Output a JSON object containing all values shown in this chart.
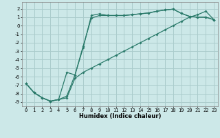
{
  "xlabel": "Humidex (Indice chaleur)",
  "bg_color": "#cce8e8",
  "grid_color": "#aacccc",
  "line_color": "#2a7a6a",
  "xlim": [
    -0.5,
    23.5
  ],
  "ylim": [
    -9.5,
    2.8
  ],
  "xticks": [
    0,
    1,
    2,
    3,
    4,
    5,
    6,
    7,
    8,
    9,
    10,
    11,
    12,
    13,
    14,
    15,
    16,
    17,
    18,
    19,
    20,
    21,
    22,
    23
  ],
  "yticks": [
    2,
    1,
    0,
    -1,
    -2,
    -3,
    -4,
    -5,
    -6,
    -7,
    -8,
    -9
  ],
  "line1_x": [
    0,
    1,
    2,
    3,
    4,
    5,
    6,
    7,
    8,
    9,
    10,
    11,
    12,
    13,
    14,
    15,
    16,
    17,
    18,
    19,
    20,
    21,
    22,
    23
  ],
  "line1_y": [
    -6.8,
    -7.9,
    -8.5,
    -8.9,
    -8.7,
    -5.5,
    -5.8,
    -2.6,
    1.2,
    1.4,
    1.2,
    1.2,
    1.2,
    1.3,
    1.4,
    1.5,
    1.7,
    1.85,
    1.95,
    1.45,
    1.1,
    1.0,
    1.0,
    0.7
  ],
  "line2_x": [
    0,
    1,
    2,
    3,
    4,
    5,
    6,
    7,
    8,
    9,
    10,
    11,
    12,
    13,
    14,
    15,
    16,
    17,
    18,
    19,
    20,
    21,
    22,
    23
  ],
  "line2_y": [
    -6.8,
    -7.9,
    -8.5,
    -8.9,
    -8.7,
    -8.5,
    -6.2,
    -5.5,
    -5.0,
    -4.5,
    -4.0,
    -3.5,
    -3.0,
    -2.5,
    -2.0,
    -1.5,
    -1.0,
    -0.5,
    0.0,
    0.5,
    1.0,
    1.3,
    1.7,
    0.7
  ],
  "line3_x": [
    0,
    1,
    2,
    3,
    4,
    5,
    6,
    7,
    8,
    9,
    10,
    11,
    12,
    13,
    14,
    15,
    16,
    17,
    18,
    19,
    20,
    21,
    22,
    23
  ],
  "line3_y": [
    -6.8,
    -7.9,
    -8.5,
    -8.9,
    -8.7,
    -8.3,
    -5.8,
    -2.4,
    0.9,
    1.2,
    1.2,
    1.2,
    1.2,
    1.3,
    1.4,
    1.5,
    1.7,
    1.85,
    1.95,
    1.45,
    1.1,
    1.0,
    1.0,
    0.7
  ],
  "tick_fontsize": 5.0,
  "xlabel_fontsize": 6.0
}
